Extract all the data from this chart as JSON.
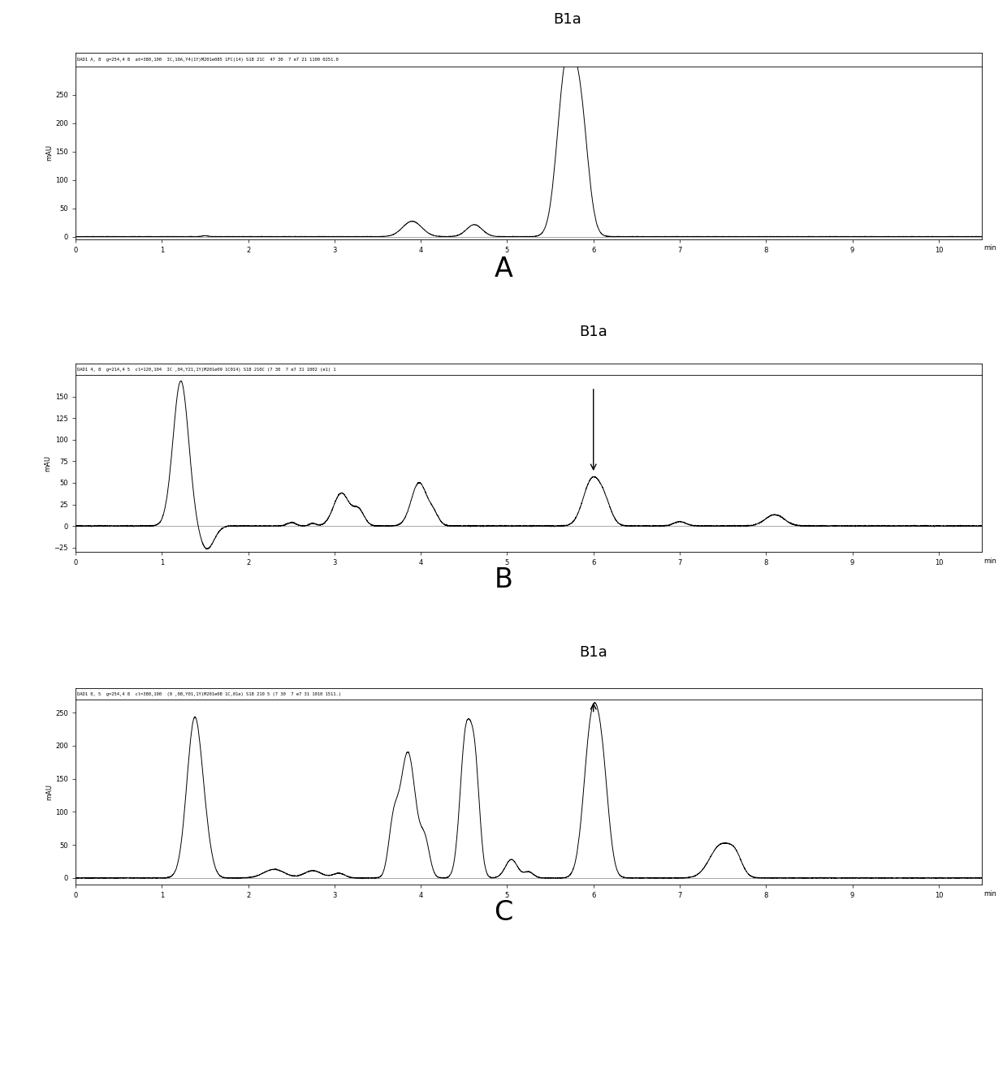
{
  "background_color": "#ffffff",
  "panels": [
    {
      "label": "A",
      "b1a_x": 5.7,
      "ylim": [
        -5,
        300
      ],
      "yticks": [
        0,
        50,
        100,
        150,
        200,
        250
      ],
      "xlim": [
        0,
        10.5
      ],
      "xticks": [
        0,
        1,
        2,
        3,
        4,
        5,
        6,
        7,
        8,
        9,
        10
      ],
      "header_text": "DAD1 A, 8  g=254,4 8  at=380,100  IC,10A,Y4(1Y)M201e085 1FC(14) S18 21C  47 30  7 e7 21 1100 0251.0",
      "ylabel": "mAU",
      "b1a_above_header": true
    },
    {
      "label": "B",
      "b1a_x": 6.0,
      "ylim": [
        -30,
        175
      ],
      "yticks": [
        -25,
        0,
        25,
        50,
        75,
        100,
        125,
        150
      ],
      "xlim": [
        0,
        10.5
      ],
      "xticks": [
        0,
        1,
        2,
        3,
        4,
        5,
        6,
        7,
        8,
        9,
        10
      ],
      "header_text": "DAD1 4, 8  g=214,4 5  cl=120,104  IC ,04,Y21,1Y)M201e09 1C014) S18 210C (7 30  7 e7 31 1002 (e1) 1",
      "ylabel": "mAU",
      "b1a_above_header": false
    },
    {
      "label": "C",
      "b1a_x": 6.0,
      "ylim": [
        -10,
        270
      ],
      "yticks": [
        0,
        50,
        100,
        150,
        200,
        250
      ],
      "xlim": [
        0,
        10.5
      ],
      "xticks": [
        0,
        1,
        2,
        3,
        4,
        5,
        6,
        7,
        8,
        9,
        10
      ],
      "header_text": "DAD1 0, 5  g=254,4 8  cl=380,100  (0 ,08,Y01,1Y)M201e08 1C,01e) S18 210 5 (7 30  7 e7 31 1010 1511.)",
      "ylabel": "mAU",
      "b1a_above_header": false
    }
  ],
  "line_color": "#000000",
  "line_width": 0.7,
  "tick_fontsize": 6,
  "header_fontsize": 4,
  "label_fontsize": 24,
  "b1a_fontsize": 13
}
